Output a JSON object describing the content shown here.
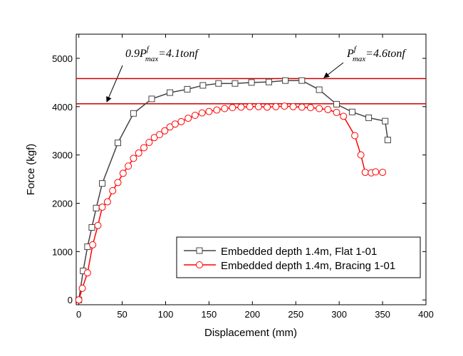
{
  "chart_data": {
    "type": "line",
    "x_label": "Displacement (mm)",
    "y_label": "Force (kgf)",
    "xlim": [
      -3,
      400
    ],
    "ylim": [
      -100,
      5500
    ],
    "xticks": [
      0,
      50,
      100,
      150,
      200,
      250,
      300,
      350,
      400
    ],
    "yticks": [
      0,
      1000,
      2000,
      3000,
      4000,
      5000
    ],
    "legend": "lower right",
    "hlines": [
      {
        "value": 4580,
        "color": "#cc0000"
      },
      {
        "value": 4060,
        "color": "#cc0000"
      }
    ],
    "annotations": [
      {
        "parts": [
          "0.9P",
          "f",
          "max",
          "=4.1tonf"
        ]
      },
      {
        "parts": [
          "P",
          "f",
          "max",
          "=4.6tonf"
        ]
      }
    ],
    "series": [
      {
        "name": "Embedded depth 1.4m, Flat 1-01",
        "color": "#444444",
        "marker": "square",
        "x": [
          0,
          5,
          10,
          15,
          20,
          27,
          45,
          63,
          84,
          105,
          125,
          143,
          161,
          180,
          199,
          219,
          238,
          257,
          277,
          297,
          315,
          334,
          353,
          356
        ],
        "values": [
          0,
          600,
          1100,
          1500,
          1900,
          2410,
          3250,
          3860,
          4160,
          4290,
          4360,
          4440,
          4480,
          4480,
          4500,
          4510,
          4540,
          4540,
          4350,
          4050,
          3890,
          3770,
          3700,
          3310
        ]
      },
      {
        "name": "Embedded depth 1.4m, Bracing 1-01",
        "color": "#ff0000",
        "marker": "circle",
        "x": [
          0,
          4,
          10,
          16,
          22,
          27,
          33,
          39,
          45,
          51,
          57,
          63,
          69,
          75,
          81,
          87,
          93,
          99,
          105,
          111,
          118,
          126,
          134,
          142,
          150,
          159,
          168,
          177,
          187,
          197,
          207,
          217,
          227,
          237,
          247,
          257,
          267,
          277,
          287,
          297,
          305,
          318,
          325,
          330,
          337,
          342,
          350
        ],
        "values": [
          0,
          240,
          560,
          1140,
          1540,
          1920,
          2030,
          2260,
          2430,
          2620,
          2770,
          2930,
          3040,
          3150,
          3260,
          3360,
          3420,
          3500,
          3580,
          3640,
          3690,
          3760,
          3820,
          3870,
          3900,
          3930,
          3960,
          3980,
          3990,
          4000,
          4000,
          3990,
          4000,
          4010,
          4000,
          3990,
          3980,
          3960,
          3940,
          3880,
          3800,
          3400,
          3000,
          2640,
          2630,
          2650,
          2640
        ]
      }
    ]
  }
}
